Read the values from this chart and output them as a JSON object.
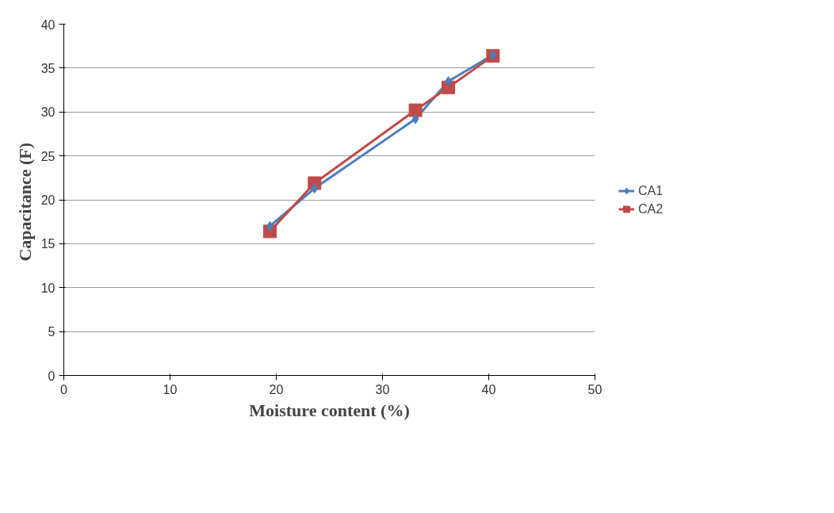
{
  "chart_data": {
    "type": "line",
    "xlabel": "Moisture content (%)",
    "ylabel": "Capacitance  (F)",
    "xlim": [
      0,
      50
    ],
    "xticks": [
      0,
      10,
      20,
      30,
      40,
      50
    ],
    "ylim": [
      0,
      40
    ],
    "yticks": [
      0,
      5,
      10,
      15,
      20,
      25,
      30,
      35,
      40
    ],
    "grid": "y",
    "legend": "right",
    "line_style": "solid",
    "series": [
      {
        "name": "CA1",
        "color": "#4a7ebb",
        "marker": "diamond",
        "x": [
          19.4,
          23.6,
          33.1,
          36.2,
          40.4
        ],
        "values": [
          17,
          21.3,
          29.2,
          33.5,
          36.5
        ]
      },
      {
        "name": "CA2",
        "color": "#be4b48",
        "marker": "square",
        "x": [
          19.4,
          23.6,
          33.1,
          36.2,
          40.4
        ],
        "values": [
          16.4,
          21.9,
          30.2,
          32.8,
          36.4
        ]
      }
    ]
  }
}
